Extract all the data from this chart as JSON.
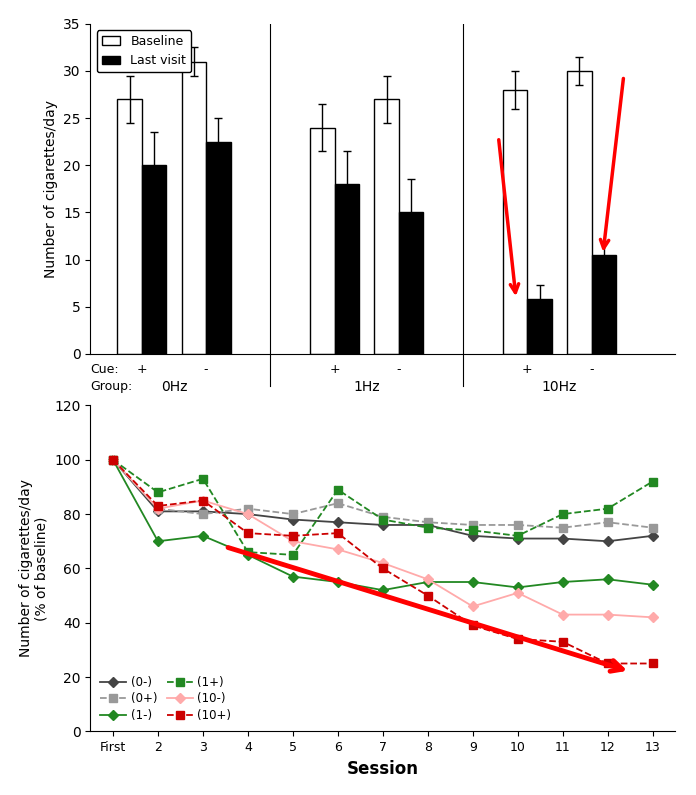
{
  "bar_groups": [
    {
      "label": "0Hz+",
      "baseline": 27,
      "baseline_err": 2.5,
      "last": 20,
      "last_err": 3.5
    },
    {
      "label": "0Hz-",
      "baseline": 31,
      "baseline_err": 1.5,
      "last": 22.5,
      "last_err": 2.5
    },
    {
      "label": "1Hz+",
      "baseline": 24,
      "baseline_err": 2.5,
      "last": 18,
      "last_err": 3.5
    },
    {
      "label": "1Hz-",
      "baseline": 27,
      "baseline_err": 2.5,
      "last": 15,
      "last_err": 3.5
    },
    {
      "label": "10Hz+",
      "baseline": 28,
      "baseline_err": 2.0,
      "last": 5.8,
      "last_err": 1.5
    },
    {
      "label": "10Hz-",
      "baseline": 30,
      "baseline_err": 1.5,
      "last": 10.5,
      "last_err": 1.5
    }
  ],
  "bar_ylim": [
    0,
    35
  ],
  "bar_yticks": [
    0,
    5,
    10,
    15,
    20,
    25,
    30,
    35
  ],
  "bar_ylabel": "Number of cigarettes/day",
  "cue_labels": [
    "+",
    "-",
    "+",
    "-",
    "+",
    "-"
  ],
  "group_labels": [
    "0Hz",
    "1Hz",
    "10Hz"
  ],
  "line_sessions": [
    "First",
    "2",
    "3",
    "4",
    "5",
    "6",
    "7",
    "8",
    "9",
    "10",
    "11",
    "12",
    "13"
  ],
  "line_x": [
    1,
    2,
    3,
    4,
    5,
    6,
    7,
    8,
    9,
    10,
    11,
    12,
    13
  ],
  "series": {
    "0minus": {
      "label": "(0-)",
      "color": "#444444",
      "linestyle": "solid",
      "marker": "D",
      "markersize": 5,
      "values": [
        100,
        81,
        81,
        80,
        78,
        77,
        76,
        76,
        72,
        71,
        71,
        70,
        72
      ]
    },
    "0plus": {
      "label": "(0+)",
      "color": "#999999",
      "linestyle": "dashed",
      "marker": "s",
      "markersize": 6,
      "values": [
        100,
        82,
        80,
        82,
        80,
        84,
        79,
        77,
        76,
        76,
        75,
        77,
        75
      ]
    },
    "1minus": {
      "label": "(1-)",
      "color": "#228822",
      "linestyle": "solid",
      "marker": "D",
      "markersize": 5,
      "values": [
        100,
        70,
        72,
        65,
        57,
        55,
        52,
        55,
        55,
        53,
        55,
        56,
        54
      ]
    },
    "1plus": {
      "label": "(1+)",
      "color": "#228822",
      "linestyle": "dashed",
      "marker": "s",
      "markersize": 6,
      "values": [
        100,
        88,
        93,
        66,
        65,
        89,
        78,
        75,
        74,
        72,
        80,
        82,
        92
      ]
    },
    "10minus": {
      "label": "(10-)",
      "color": "#ffaaaa",
      "linestyle": "solid",
      "marker": "D",
      "markersize": 5,
      "values": [
        100,
        82,
        85,
        80,
        70,
        67,
        62,
        56,
        46,
        51,
        43,
        43,
        42
      ]
    },
    "10plus": {
      "label": "(10+)",
      "color": "#cc0000",
      "linestyle": "dashed",
      "marker": "s",
      "markersize": 6,
      "values": [
        100,
        83,
        85,
        73,
        72,
        73,
        60,
        50,
        39,
        34,
        33,
        25,
        25
      ]
    }
  },
  "line_ylim": [
    0,
    120
  ],
  "line_yticks": [
    0,
    20,
    40,
    60,
    80,
    100,
    120
  ],
  "line_ylabel": "Number of cigarettes/day\n(% of baseline)",
  "line_xlabel": "Session",
  "bg_color": "#ffffff"
}
